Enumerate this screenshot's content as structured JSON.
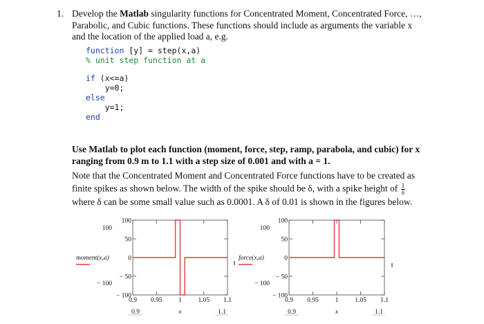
{
  "problem": {
    "number": "1.",
    "intro_line1_pre": "Develop the ",
    "intro_line1_bold": "Matlab",
    "intro_line1_post": " singularity functions for Concentrated Moment, Concentrated Force, …,",
    "intro_line2": "Parabolic, and Cubic functions. These functions should include as arguments the variable x",
    "intro_line3": "and the location of the applied load a, e.g."
  },
  "code": {
    "line1_kw": "function",
    "line1_rest": " [y] = step(x,a)",
    "line2": "% unit step function at a",
    "line3_kw": "if",
    "line3_rest": " (x<=a)",
    "line4": "    y=0;",
    "line5": "else",
    "line6": "    y=1;",
    "line7": "end"
  },
  "instruction": {
    "line1": "Use Matlab to plot each function (moment, force, step, ramp, parabola, and cubic) for x",
    "line2": "ranging from 0.9 m to 1.1 with a step size of 0.001 and with a = 1."
  },
  "note": {
    "line1": "Note that the Concentrated Moment and Concentrated Force functions have to be created as",
    "line2_pre": "finite spikes as shown below. The width of the spike should be δ, with a spike height of",
    "frac_num": "1",
    "frac_den": "δ",
    "line3": "where δ can be some small value such as 0.0001. A δ of 0.01 is shown in the figures below."
  },
  "chart_data": [
    {
      "type": "line",
      "ylabel": "moment(x,a)",
      "x_axis_label": "x",
      "x_range_labels": [
        "0.9",
        "1.1"
      ],
      "ylim": [
        -100,
        100
      ],
      "xlim": [
        0.9,
        1.1
      ],
      "y_outer_ticks": [
        "100",
        "− 100"
      ],
      "y_inner_ticks": [
        "100",
        "50",
        "0",
        "− 50",
        "− 100"
      ],
      "x_ticks": [
        "0.9",
        "0.95",
        "1",
        "1.05",
        "1.1"
      ],
      "series_color": "#e0393e",
      "x": [
        0.9,
        0.99,
        0.99,
        1.0,
        1.0,
        1.01,
        1.01,
        1.1
      ],
      "y": [
        0,
        0,
        100,
        100,
        -100,
        -100,
        0,
        0
      ]
    },
    {
      "type": "line",
      "ylabel": "force(x,a)",
      "x_axis_label": "x",
      "x_range_labels": [
        "0.9",
        "1.1"
      ],
      "ylim": [
        -100,
        100
      ],
      "xlim": [
        0.9,
        1.1
      ],
      "y_outer_ticks": [
        "100",
        "− 100"
      ],
      "y_inner_ticks": [
        "100",
        "50",
        "0",
        "− 50",
        "− 100"
      ],
      "x_ticks": [
        "0.9",
        "0.95",
        "1",
        "1.05",
        "1.1"
      ],
      "series_color": "#e0393e",
      "x": [
        0.9,
        0.995,
        0.995,
        1.005,
        1.005,
        1.1
      ],
      "y": [
        0,
        0,
        100,
        100,
        0,
        0
      ]
    }
  ]
}
